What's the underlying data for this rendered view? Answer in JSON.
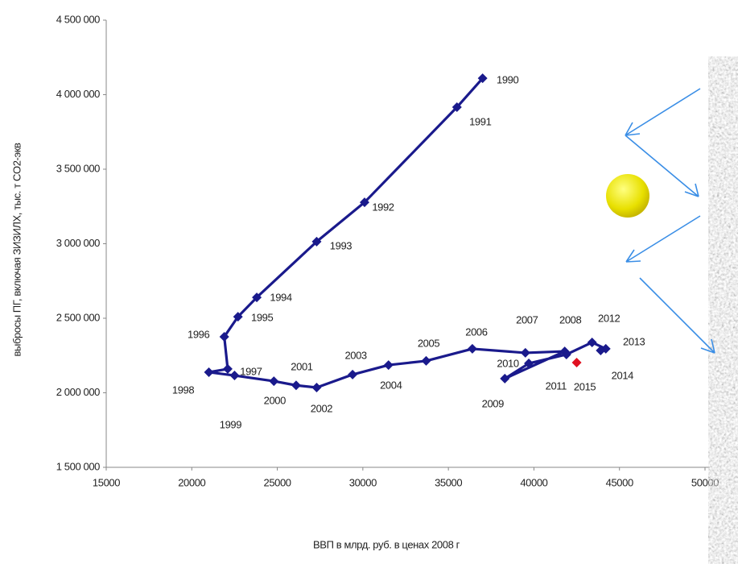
{
  "chart_data": {
    "type": "line",
    "ylabel": "выбросы ПГ, включая ЗИЗИЛХ, тыс. т CO2-экв",
    "xlabel": "ВВП в млрд. руб. в ценах 2008 г",
    "xlim": [
      15000,
      50000
    ],
    "xticks": [
      15000,
      20000,
      25000,
      30000,
      35000,
      40000,
      45000,
      50000
    ],
    "ylim": [
      1500000,
      4500000
    ],
    "yticks": [
      {
        "value": 1500000,
        "label": "1 500 000"
      },
      {
        "value": 2000000,
        "label": "2 000 000"
      },
      {
        "value": 2500000,
        "label": "2 500 000"
      },
      {
        "value": 3000000,
        "label": "3 000 000"
      },
      {
        "value": 3500000,
        "label": "3 500 000"
      },
      {
        "value": 4000000,
        "label": "4 000 000"
      },
      {
        "value": 4500000,
        "label": "4 500 000"
      }
    ],
    "series": [
      {
        "color": "#1a1a8c",
        "labels": [
          "1990",
          "1991",
          "1992",
          "1993",
          "1994",
          "1995",
          "1996",
          "1997",
          "1998",
          "1999",
          "2000",
          "2001",
          "2002",
          "2003",
          "2004",
          "2005",
          "2006",
          "2007",
          "2008",
          "2009",
          "2010",
          "2011",
          "2012",
          "2013",
          "2014"
        ],
        "x": [
          37000,
          35500,
          30100,
          27300,
          23800,
          22700,
          21900,
          22100,
          21000,
          22500,
          24800,
          26100,
          27300,
          29400,
          31500,
          33700,
          36400,
          39500,
          41800,
          38300,
          39700,
          41900,
          43400,
          44200,
          43900
        ],
        "values": [
          4110000,
          3916000,
          3278000,
          3014000,
          2640000,
          2510000,
          2376000,
          2160000,
          2138000,
          2116000,
          2078000,
          2050000,
          2035000,
          2122000,
          2186000,
          2214000,
          2295000,
          2268000,
          2278000,
          2095000,
          2197000,
          2257000,
          2338000,
          2295000,
          2284000
        ]
      },
      {
        "color": "#e01020",
        "labels": [
          "2015"
        ],
        "x": [
          42500
        ],
        "values": [
          2203000
        ]
      }
    ]
  }
}
